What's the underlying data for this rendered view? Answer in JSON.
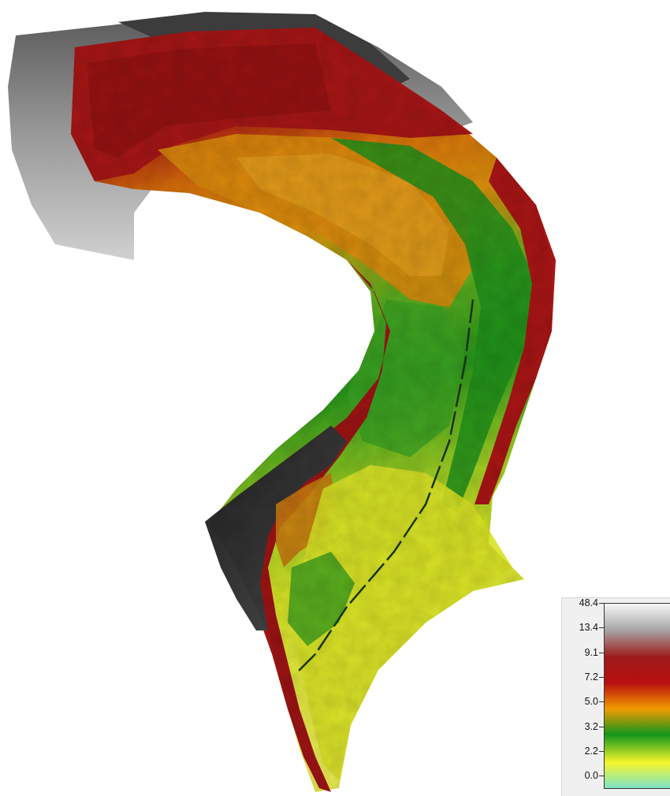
{
  "map": {
    "colors": {
      "ramp": [
        "#7fe3c7",
        "#f6fa2a",
        "#0e8a0e",
        "#f2a600",
        "#9e0d0d",
        "#b0b0b0",
        "#f7f7f7"
      ],
      "background": "#ffffff"
    }
  },
  "legend": {
    "ticks": [
      {
        "label": "48.4",
        "color": "#f7f7f7"
      },
      {
        "label": "13.4",
        "color": "#a8a8a8"
      },
      {
        "label": "9.1",
        "color": "#9e1a1a"
      },
      {
        "label": "7.2",
        "color": "#b80f0f"
      },
      {
        "label": "5.0",
        "color": "#f09a00"
      },
      {
        "label": "3.2",
        "color": "#14961a"
      },
      {
        "label": "2.2",
        "color": "#f4f62a"
      },
      {
        "label": "0.0",
        "color": "#7fe3c7"
      }
    ]
  }
}
